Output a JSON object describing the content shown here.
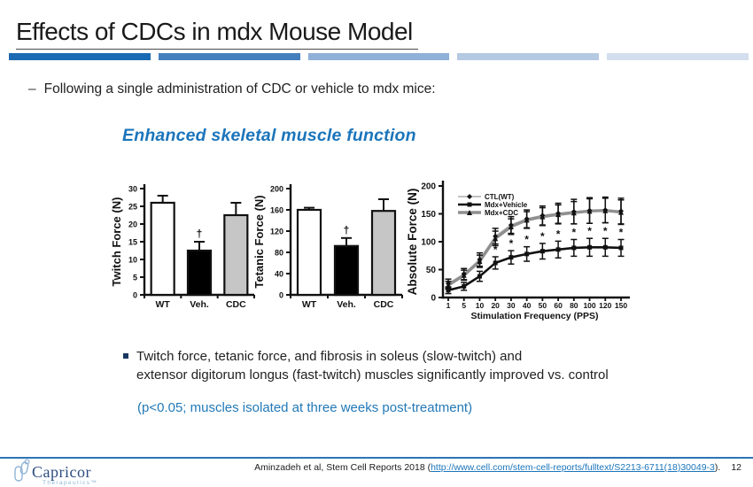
{
  "slide": {
    "title": "Effects of CDCs in mdx Mouse Model",
    "title_bars": [
      "#1b6ab3",
      "#447fbd",
      "#8fb0d7",
      "#b5c9e2",
      "#d3deee"
    ],
    "bullet_dash": "–",
    "bullet1": "Following a single administration of CDC or vehicle to mdx mice:",
    "subheading": "Enhanced skeletal muscle function",
    "bullet2_line1": "Twitch force, tetanic force, and fibrosis in soleus (slow-twitch) and",
    "bullet2_line2": "extensor digitorum longus (fast-twitch) muscles significantly improved vs. control",
    "note": "(p<0.05; muscles isolated at three weeks post-treatment)",
    "accent_blue": "#1B75BB"
  },
  "footer": {
    "logo_text": "Capricor",
    "logo_sub": "Therapeutics™",
    "citation_prefix": "Aminzadeh et al, Stem Cell Reports 2018 (",
    "citation_link": "http://www.cell.com/stem-cell-reports/fulltext/S2213-6711(18)30049-3",
    "citation_suffix": ").",
    "page_number": "12"
  },
  "chart_data": [
    {
      "type": "bar",
      "title": "",
      "ylabel": "Twitch Force (N)",
      "xlabel": "",
      "ylim": [
        0,
        30
      ],
      "yticks": [
        0,
        5,
        10,
        15,
        20,
        25,
        30
      ],
      "categories": [
        "WT",
        "Veh.",
        "CDC"
      ],
      "values": [
        26,
        12.5,
        22.5
      ],
      "errors": [
        2,
        2.5,
        3.5
      ],
      "bar_colors": [
        "#ffffff",
        "#000000",
        "#c6c6c6"
      ],
      "annotations": [
        {
          "category": "Veh.",
          "text": "†"
        }
      ],
      "grid": false
    },
    {
      "type": "bar",
      "title": "",
      "ylabel": "Tetanic Force (N)",
      "xlabel": "",
      "ylim": [
        0,
        200
      ],
      "yticks": [
        0,
        40,
        80,
        120,
        160,
        200
      ],
      "categories": [
        "WT",
        "Veh.",
        "CDC"
      ],
      "values": [
        160,
        92,
        158
      ],
      "errors": [
        4,
        15,
        22
      ],
      "bar_colors": [
        "#ffffff",
        "#000000",
        "#c6c6c6"
      ],
      "annotations": [
        {
          "category": "Veh.",
          "text": "†"
        }
      ],
      "grid": false
    },
    {
      "type": "line",
      "title": "",
      "ylabel": "Absolute Force (N)",
      "xlabel": "Stimulation Frequency (PPS)",
      "ylim": [
        0,
        200
      ],
      "yticks": [
        0,
        50,
        100,
        150,
        200
      ],
      "x": [
        1,
        5,
        10,
        20,
        30,
        40,
        50,
        60,
        80,
        100,
        120,
        150
      ],
      "series": [
        {
          "name": "CTL(WT)",
          "color": "#b9b9b9",
          "marker": "diamond",
          "line_width": 1.8,
          "values": [
            25,
            42,
            68,
            110,
            130,
            141,
            147,
            151,
            154,
            156,
            157,
            155
          ],
          "errors": [
            8,
            10,
            12,
            14,
            15,
            16,
            17,
            18,
            22,
            23,
            23,
            23
          ]
        },
        {
          "name": "Mdx+Vehicle",
          "color": "#111111",
          "marker": "square",
          "line_width": 2.6,
          "values": [
            13,
            20,
            38,
            62,
            72,
            78,
            83,
            86,
            89,
            90,
            90,
            89
          ],
          "errors": [
            6,
            7,
            9,
            11,
            12,
            13,
            14,
            15,
            15,
            16,
            16,
            15
          ]
        },
        {
          "name": "Mdx+CDC",
          "color": "#8f8f8f",
          "marker": "triangle",
          "line_width": 3.4,
          "values": [
            22,
            40,
            65,
            106,
            127,
            139,
            145,
            149,
            152,
            155,
            156,
            153
          ],
          "errors": [
            7,
            9,
            11,
            13,
            14,
            15,
            16,
            17,
            20,
            22,
            22,
            22
          ]
        }
      ],
      "significance_marker": "*",
      "significance_x": [
        5,
        10,
        20,
        30,
        40,
        50,
        60,
        80,
        100,
        120,
        150
      ],
      "legend_position": "top-left",
      "grid": false
    }
  ]
}
